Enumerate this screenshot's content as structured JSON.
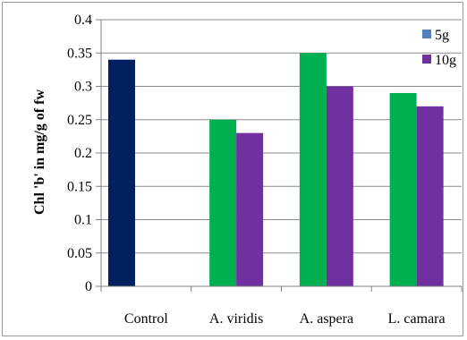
{
  "chart_data": {
    "type": "bar",
    "title": "",
    "xlabel": "",
    "ylabel": "Chl 'b' in mg/g of fw",
    "ylim": [
      0,
      0.4
    ],
    "yticks": [
      0,
      0.05,
      0.1,
      0.15,
      0.2,
      0.25,
      0.3,
      0.35,
      0.4
    ],
    "ytick_labels": [
      "0",
      "0.05",
      "0.1",
      "0.15",
      "0.2",
      "0.25",
      "0.3",
      "0.35",
      "0.4"
    ],
    "categories": [
      "Control",
      "A. viridis",
      "A. aspera",
      "L. camara"
    ],
    "grid": true,
    "legend_position": "top-right",
    "control_bar": {
      "category": "Control",
      "value": 0.34,
      "color": "#002060"
    },
    "series": [
      {
        "name": "5g",
        "legend_color": "#4F81BD",
        "bar_color": "#00B050",
        "values": [
          null,
          0.25,
          0.35,
          0.29
        ]
      },
      {
        "name": "10g",
        "legend_color": "#7030A0",
        "bar_color": "#7030A0",
        "values": [
          null,
          0.23,
          0.3,
          0.27
        ]
      }
    ]
  }
}
